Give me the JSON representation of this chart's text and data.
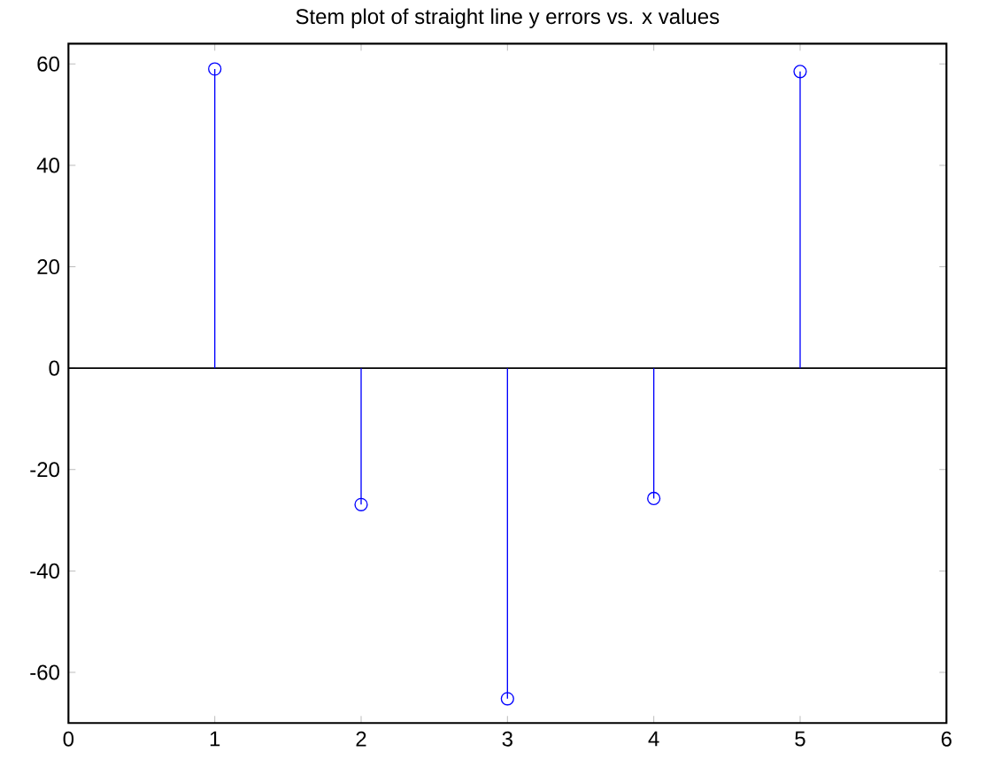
{
  "chart_data": {
    "type": "lollipop",
    "title": "Stem plot of straight line y errors vs. x values",
    "x": [
      1,
      2,
      3,
      4,
      5
    ],
    "values": [
      59.0,
      -26.9,
      -65.2,
      -25.7,
      58.5
    ],
    "color": "#0000ff",
    "marker": "circle",
    "xlim": [
      0,
      6
    ],
    "ylim": [
      -70,
      64
    ],
    "xticks": [
      0,
      1,
      2,
      3,
      4,
      5,
      6
    ],
    "yticks": [
      -60,
      -40,
      -20,
      0,
      20,
      40,
      60
    ],
    "ref_lines": [
      {
        "axis": "y",
        "value": 0,
        "color": "#000000"
      }
    ]
  }
}
